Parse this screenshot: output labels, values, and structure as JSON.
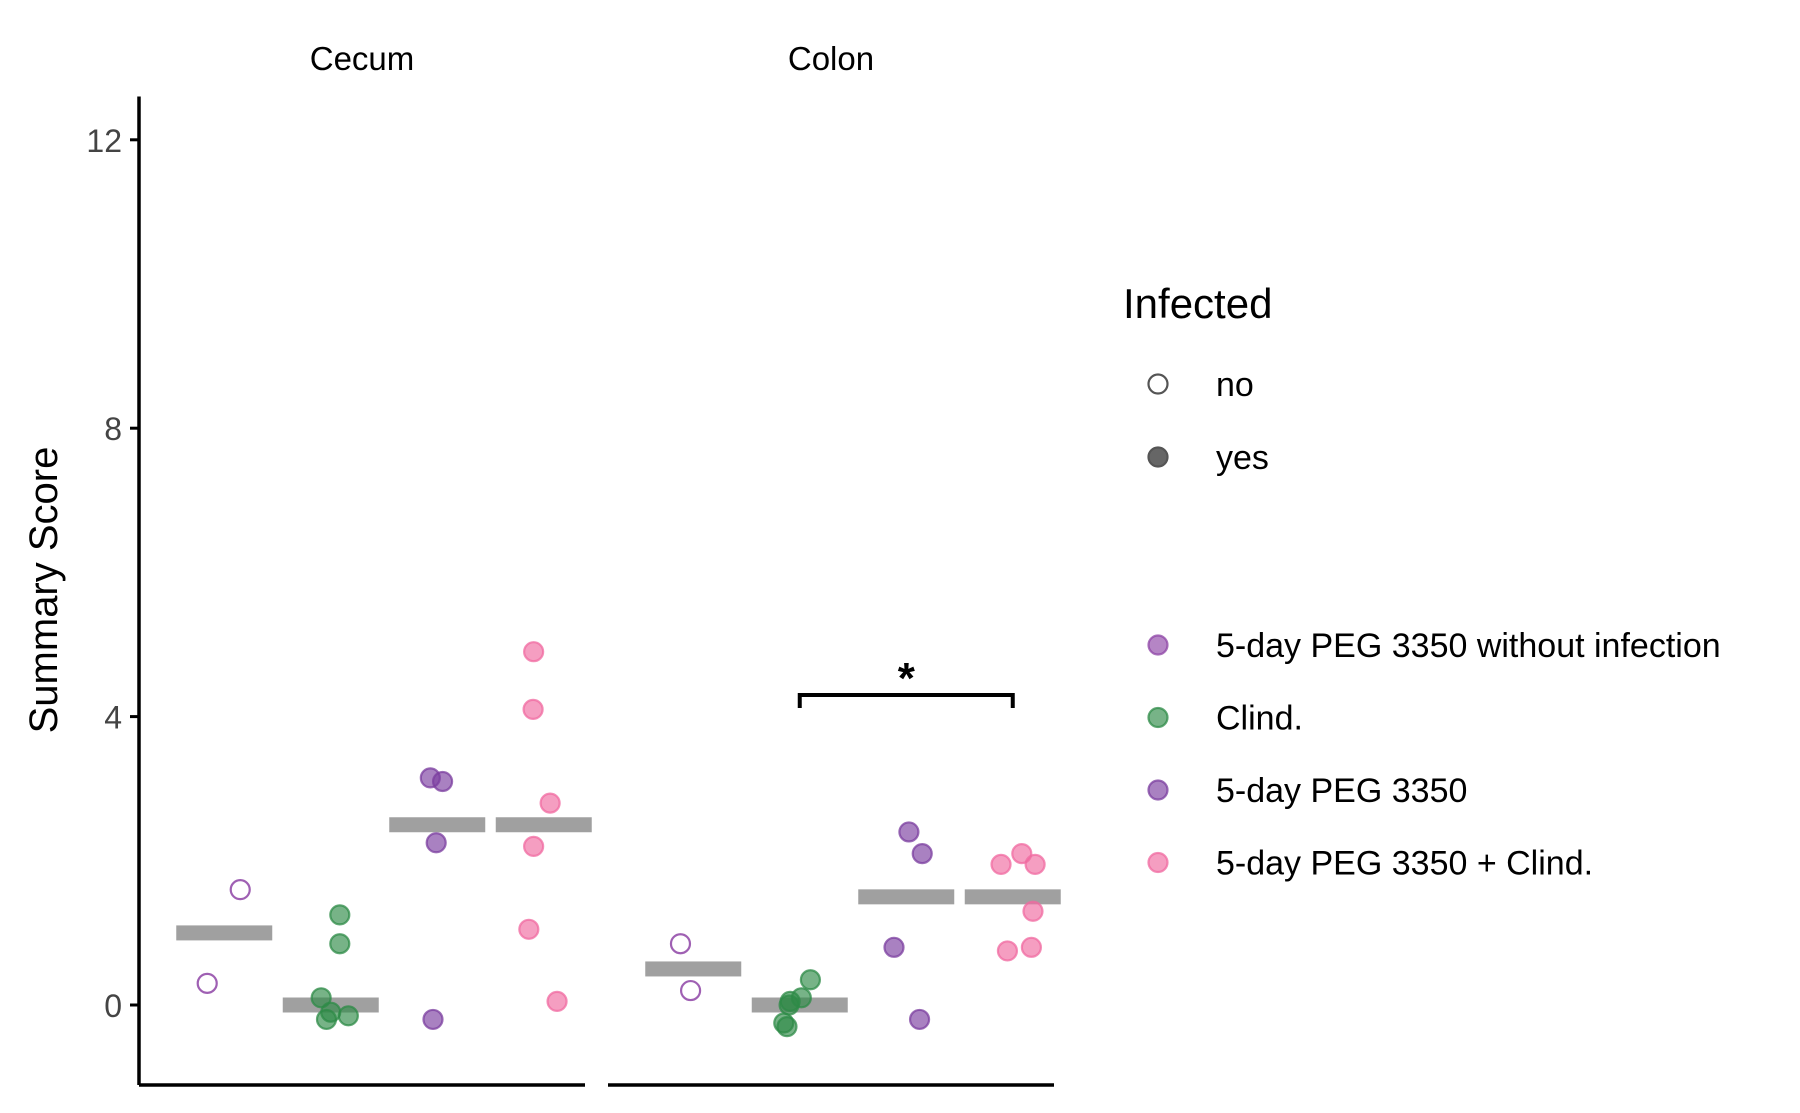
{
  "chart_data": {
    "type": "scatter",
    "y_label": "Summary Score",
    "y_range": [
      -1.1,
      12.6
    ],
    "y_ticks": [
      0,
      4,
      8,
      12
    ],
    "grid": false,
    "colors": {
      "5-day PEG 3350 without infection": "#8e44a6",
      "Clind.": "#2e8b47",
      "5-day PEG 3350": "#7b3d9f",
      "5-day PEG 3350 + Clind.": "#f06aa0",
      "median_bar": "#a0a0a0",
      "axis": "#000000"
    },
    "legend_infected": {
      "title": "Infected",
      "items": [
        {
          "label": "no",
          "filled": false
        },
        {
          "label": "yes",
          "filled": true
        }
      ]
    },
    "legend_groups": [
      "5-day PEG 3350 without infection",
      "Clind.",
      "5-day PEG 3350",
      "5-day PEG 3350 + Clind."
    ],
    "group_order": [
      "5-day PEG 3350 without infection",
      "Clind.",
      "5-day PEG 3350",
      "5-day PEG 3350 + Clind."
    ],
    "panels": [
      {
        "title": "Cecum",
        "groups": [
          {
            "group": "5-day PEG 3350 without infection",
            "infected": false,
            "median": 1.0,
            "points": [
              {
                "x_jitter": -0.32,
                "y": 0.3
              },
              {
                "x_jitter": 0.3,
                "y": 1.6
              }
            ]
          },
          {
            "group": "Clind.",
            "infected": true,
            "median": 0.0,
            "points": [
              {
                "x_jitter": -0.18,
                "y": 0.1
              },
              {
                "x_jitter": 0.17,
                "y": 1.25
              },
              {
                "x_jitter": 0.17,
                "y": 0.85
              },
              {
                "x_jitter": -0.08,
                "y": -0.2
              },
              {
                "x_jitter": 0.0,
                "y": -0.1
              },
              {
                "x_jitter": 0.33,
                "y": -0.15
              }
            ]
          },
          {
            "group": "5-day PEG 3350",
            "infected": true,
            "median": 2.5,
            "points": [
              {
                "x_jitter": -0.13,
                "y": 3.15
              },
              {
                "x_jitter": 0.1,
                "y": 3.1
              },
              {
                "x_jitter": -0.02,
                "y": 2.25
              },
              {
                "x_jitter": -0.08,
                "y": -0.2
              }
            ]
          },
          {
            "group": "5-day PEG 3350 + Clind.",
            "infected": true,
            "median": 2.5,
            "points": [
              {
                "x_jitter": -0.19,
                "y": 4.9
              },
              {
                "x_jitter": -0.2,
                "y": 4.1
              },
              {
                "x_jitter": 0.12,
                "y": 2.8
              },
              {
                "x_jitter": -0.19,
                "y": 2.2
              },
              {
                "x_jitter": -0.28,
                "y": 1.05
              },
              {
                "x_jitter": 0.25,
                "y": 0.05
              }
            ]
          }
        ]
      },
      {
        "title": "Colon",
        "significance": {
          "label": "*",
          "y": 4.3,
          "from_group": 1,
          "to_group": 3
        },
        "groups": [
          {
            "group": "5-day PEG 3350 without infection",
            "infected": false,
            "median": 0.5,
            "points": [
              {
                "x_jitter": -0.24,
                "y": 0.85
              },
              {
                "x_jitter": -0.05,
                "y": 0.2
              }
            ]
          },
          {
            "group": "Clind.",
            "infected": true,
            "median": 0.0,
            "points": [
              {
                "x_jitter": 0.2,
                "y": 0.35
              },
              {
                "x_jitter": 0.03,
                "y": 0.1
              },
              {
                "x_jitter": -0.18,
                "y": 0.05
              },
              {
                "x_jitter": -0.2,
                "y": 0.0
              },
              {
                "x_jitter": -0.3,
                "y": -0.25
              },
              {
                "x_jitter": -0.24,
                "y": -0.3
              }
            ]
          },
          {
            "group": "5-day PEG 3350",
            "infected": true,
            "median": 1.5,
            "points": [
              {
                "x_jitter": 0.05,
                "y": 2.4
              },
              {
                "x_jitter": 0.3,
                "y": 2.1
              },
              {
                "x_jitter": -0.23,
                "y": 0.8
              },
              {
                "x_jitter": 0.25,
                "y": -0.2
              }
            ]
          },
          {
            "group": "5-day PEG 3350 + Clind.",
            "infected": true,
            "median": 1.5,
            "points": [
              {
                "x_jitter": -0.22,
                "y": 1.95
              },
              {
                "x_jitter": 0.17,
                "y": 2.1
              },
              {
                "x_jitter": 0.42,
                "y": 1.95
              },
              {
                "x_jitter": 0.38,
                "y": 1.3
              },
              {
                "x_jitter": -0.1,
                "y": 0.75
              },
              {
                "x_jitter": 0.35,
                "y": 0.8
              }
            ]
          }
        ]
      }
    ]
  }
}
